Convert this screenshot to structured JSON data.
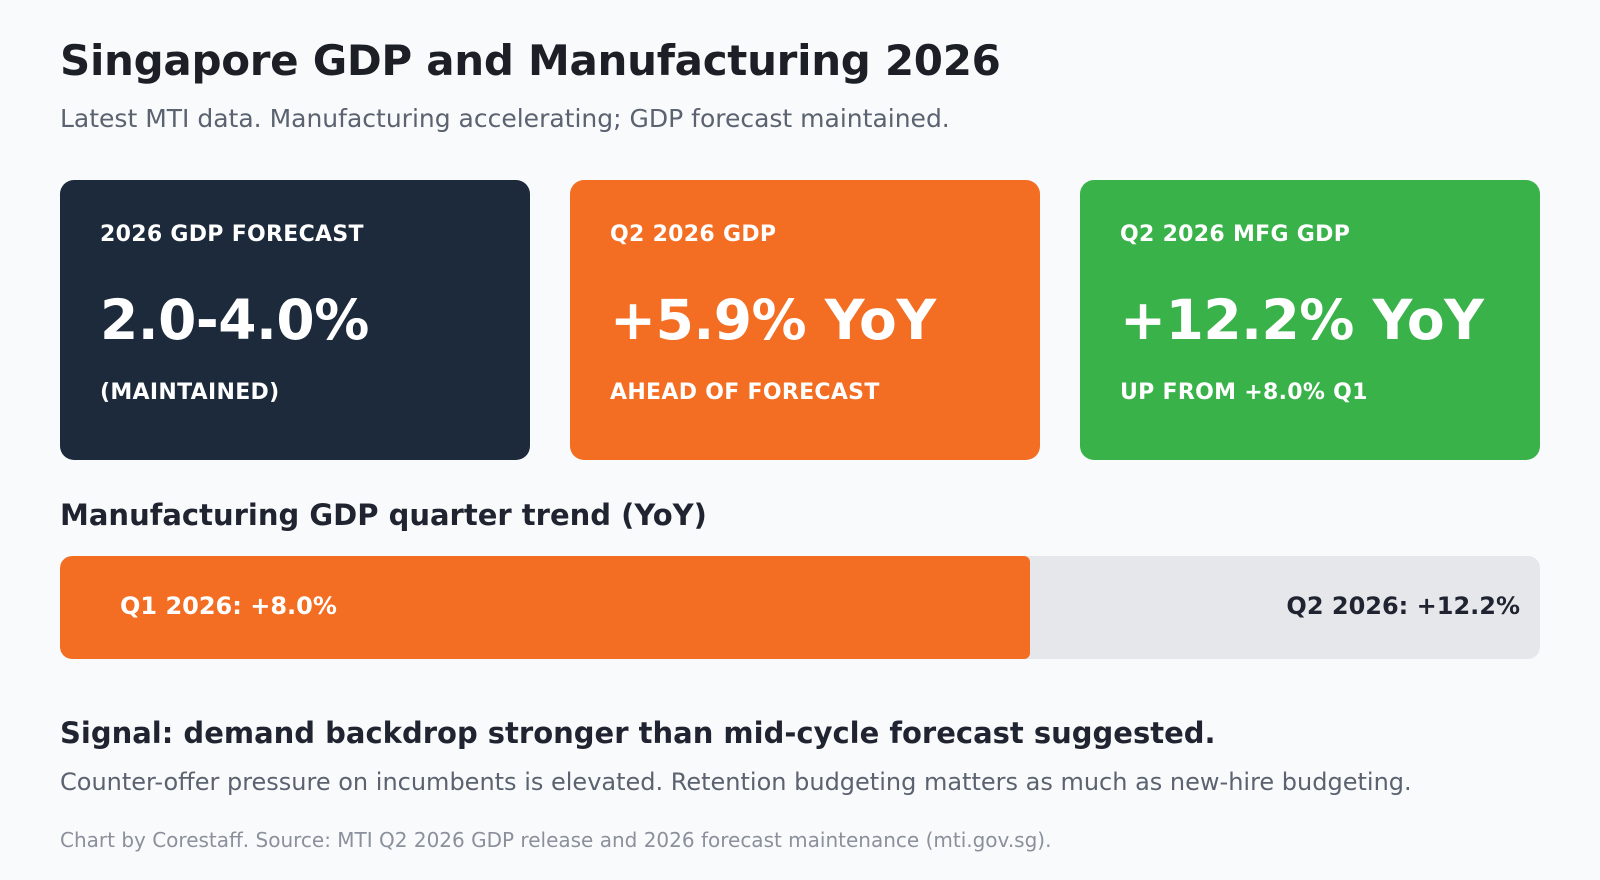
{
  "header": {
    "title": "Singapore GDP and Manufacturing 2026",
    "subtitle": "Latest MTI data. Manufacturing accelerating; GDP forecast maintained."
  },
  "cards": [
    {
      "label": "2026 GDP FORECAST",
      "value": "2.0-4.0%",
      "note": "(MAINTAINED)",
      "color": "#1c2a3b"
    },
    {
      "label": "Q2 2026 GDP",
      "value": "+5.9% YoY",
      "note": "AHEAD OF FORECAST",
      "color": "#f36d22"
    },
    {
      "label": "Q2 2026 MFG GDP",
      "value": "+12.2% YoY",
      "note": "UP FROM +8.0% Q1",
      "color": "#39b24a"
    }
  ],
  "trend": {
    "title": "Manufacturing GDP quarter trend (YoY)",
    "q1_label": "Q1 2026: +8.0%",
    "q2_label": "Q2 2026: +12.2%",
    "q1_value": 8.0,
    "q2_value": 12.2,
    "fill_color": "#f36d22",
    "track_color": "#e5e7eb"
  },
  "signal": {
    "title": "Signal: demand backdrop stronger than mid-cycle forecast suggested.",
    "text": "Counter-offer pressure on incumbents is elevated. Retention budgeting matters as much as new-hire budgeting."
  },
  "footer": {
    "source": "Chart by Corestaff. Source: MTI Q2 2026 GDP release and 2026 forecast maintenance (mti.gov.sg)."
  }
}
